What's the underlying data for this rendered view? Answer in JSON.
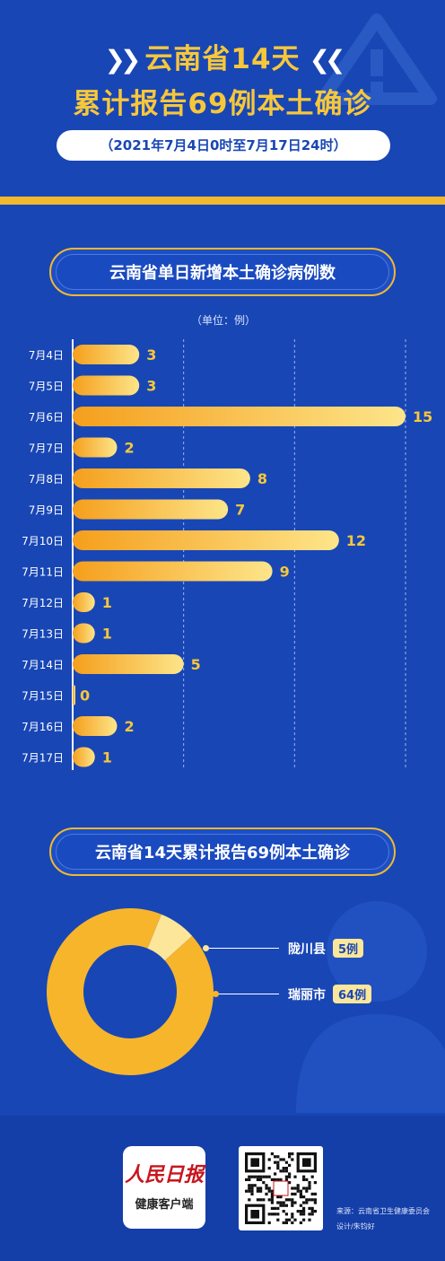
{
  "header": {
    "title_line1": "云南省14天",
    "title_line2": "累计报告69例本土确诊",
    "period": "（2021年7月4日0时至7月17日24时）"
  },
  "section1": {
    "title": "云南省单日新增本土确诊病例数",
    "unit": "（单位：例）"
  },
  "section2": {
    "title": "云南省14天累计报告69例本土确诊"
  },
  "chart_data": [
    {
      "type": "bar",
      "orientation": "horizontal",
      "title": "云南省单日新增本土确诊病例数",
      "unit": "（单位：例）",
      "categories": [
        "7月4日",
        "7月5日",
        "7月6日",
        "7月7日",
        "7月8日",
        "7月9日",
        "7月10日",
        "7月11日",
        "7月12日",
        "7月13日",
        "7月14日",
        "7月15日",
        "7月16日",
        "7月17日"
      ],
      "values": [
        3,
        3,
        15,
        2,
        8,
        7,
        12,
        9,
        1,
        1,
        5,
        0,
        2,
        1
      ],
      "xlim": [
        0,
        15
      ],
      "gridlines": [
        5,
        10,
        15
      ],
      "grid": true,
      "colors": {
        "bar_start": "#f59f1c",
        "bar_end": "#fde58a",
        "label": "#f7c73a"
      }
    },
    {
      "type": "pie",
      "variant": "donut",
      "title": "云南省14天累计报告69例本土确诊",
      "labels": [
        "陇川县",
        "瑞丽市"
      ],
      "values": [
        5,
        64
      ],
      "value_labels": [
        "5例",
        "64例"
      ],
      "colors": [
        "#fbe699",
        "#f7b52c"
      ]
    }
  ],
  "footer": {
    "logo_top": "人民日报",
    "logo_bottom": "健康客户端",
    "source": "来源：云南省卫生健康委员会",
    "design": "设计/朱钧好"
  }
}
